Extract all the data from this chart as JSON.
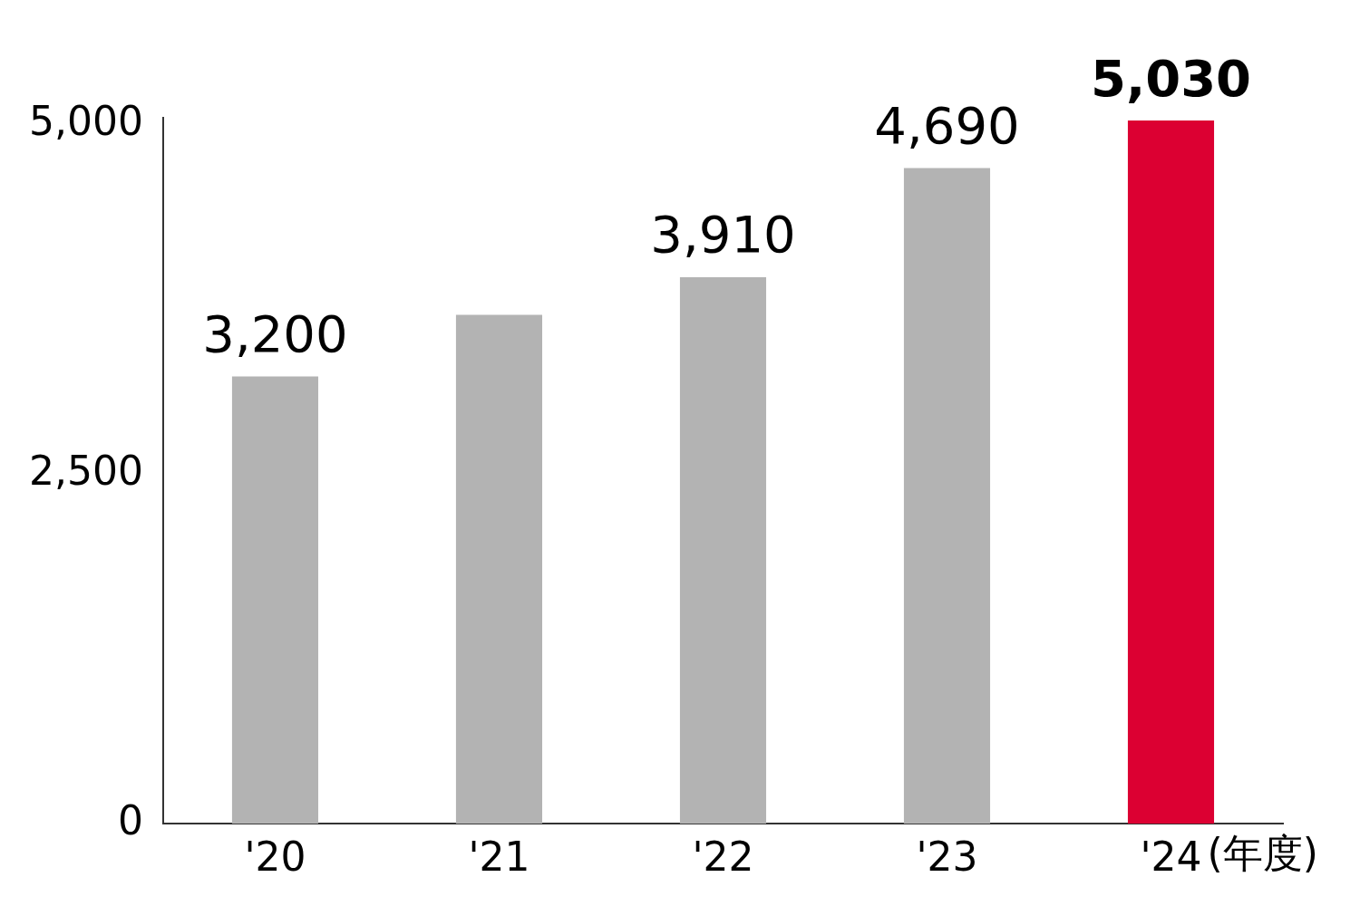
{
  "chart_data": {
    "type": "bar",
    "xlabel": "(年度)",
    "categories": [
      "'20",
      "'21",
      "'22",
      "'23",
      "'24"
    ],
    "values": [
      3200,
      3640,
      3910,
      4690,
      5030
    ],
    "colors": [
      "#b3b3b3",
      "#b3b3b3",
      "#b3b3b3",
      "#b3b3b3",
      "#dc0032"
    ],
    "value_labels": [
      "3,200",
      null,
      "3,910",
      "4,690",
      "5,030"
    ],
    "ylim": [
      0,
      5050
    ],
    "yticks": [
      {
        "value": 0,
        "label": "0"
      },
      {
        "value": 2500,
        "label": "2,500"
      },
      {
        "value": 5000,
        "label": "5,000"
      }
    ],
    "grid": false,
    "legend": false
  }
}
